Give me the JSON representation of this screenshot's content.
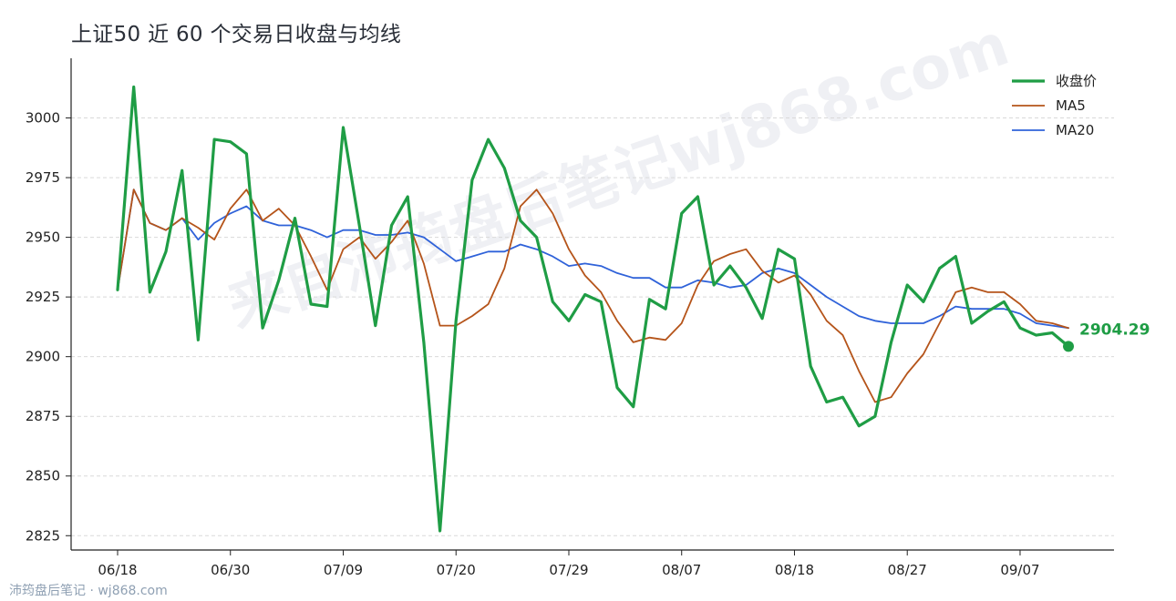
{
  "title": "上证50 近 60 个交易日收盘与均线",
  "watermark": {
    "diagonal": "来自沛筠盘后笔记wj868.com",
    "footer": "沛筠盘后笔记 · wj868.com"
  },
  "colors": {
    "close": "#1f9d45",
    "ma5": "#b5541a",
    "ma20": "#2f62d9",
    "grid": "#d9d9d9",
    "axis": "#222222"
  },
  "chart_data": {
    "type": "line",
    "title": "上证50 近 60 个交易日收盘与均线",
    "x_tick_labels": [
      "06/18",
      "06/30",
      "07/09",
      "07/20",
      "07/29",
      "08/07",
      "08/18",
      "08/27",
      "09/07"
    ],
    "x_tick_indices": [
      0,
      7,
      14,
      21,
      28,
      35,
      42,
      49,
      56
    ],
    "ylim": [
      2819,
      3025
    ],
    "yticks": [
      2825,
      2850,
      2875,
      2900,
      2925,
      2950,
      2975,
      3000
    ],
    "grid": "horizontal dashed",
    "legend_position": "top-right",
    "series": [
      {
        "name": "收盘价",
        "values": [
          2928,
          3013,
          2927,
          2944,
          2978,
          2907,
          2991,
          2990,
          2985,
          2912,
          2932,
          2958,
          2922,
          2921,
          2996,
          2955,
          2913,
          2955,
          2967,
          2906,
          2827,
          2915,
          2974,
          2991,
          2979,
          2957,
          2950,
          2923,
          2915,
          2926,
          2923,
          2887,
          2879,
          2924,
          2920,
          2960,
          2967,
          2930,
          2938,
          2929,
          2916,
          2945,
          2941,
          2896,
          2881,
          2883,
          2871,
          2875,
          2906,
          2930,
          2923,
          2937,
          2942,
          2914,
          2919,
          2923,
          2912,
          2909,
          2910,
          2904.29
        ]
      },
      {
        "name": "MA5",
        "values": [
          2928,
          2970,
          2956,
          2953,
          2958,
          2954,
          2949,
          2962,
          2970,
          2957,
          2962,
          2955,
          2942,
          2928,
          2945,
          2950,
          2941,
          2948,
          2957,
          2939,
          2913,
          2913,
          2917,
          2922,
          2937,
          2963,
          2970,
          2960,
          2945,
          2934,
          2927,
          2915,
          2906,
          2908,
          2907,
          2914,
          2930,
          2940,
          2943,
          2945,
          2936,
          2931,
          2934,
          2926,
          2915,
          2909,
          2894,
          2881,
          2883,
          2893,
          2901,
          2914,
          2927,
          2929,
          2927,
          2927,
          2922,
          2915,
          2914,
          2912
        ]
      },
      {
        "name": "MA20",
        "values": [
          2928,
          2970,
          2956,
          2953,
          2958,
          2949,
          2956,
          2960,
          2963,
          2957,
          2955,
          2955,
          2953,
          2950,
          2953,
          2953,
          2951,
          2951,
          2952,
          2950,
          2945,
          2940,
          2942,
          2944,
          2944,
          2947,
          2945,
          2942,
          2938,
          2939,
          2938,
          2935,
          2933,
          2933,
          2929,
          2929,
          2932,
          2931,
          2929,
          2930,
          2935,
          2937,
          2935,
          2930,
          2925,
          2921,
          2917,
          2915,
          2914,
          2914,
          2914,
          2917,
          2921,
          2920,
          2920,
          2920,
          2918,
          2914,
          2913,
          2912
        ]
      }
    ],
    "end_label": "2904.29"
  }
}
